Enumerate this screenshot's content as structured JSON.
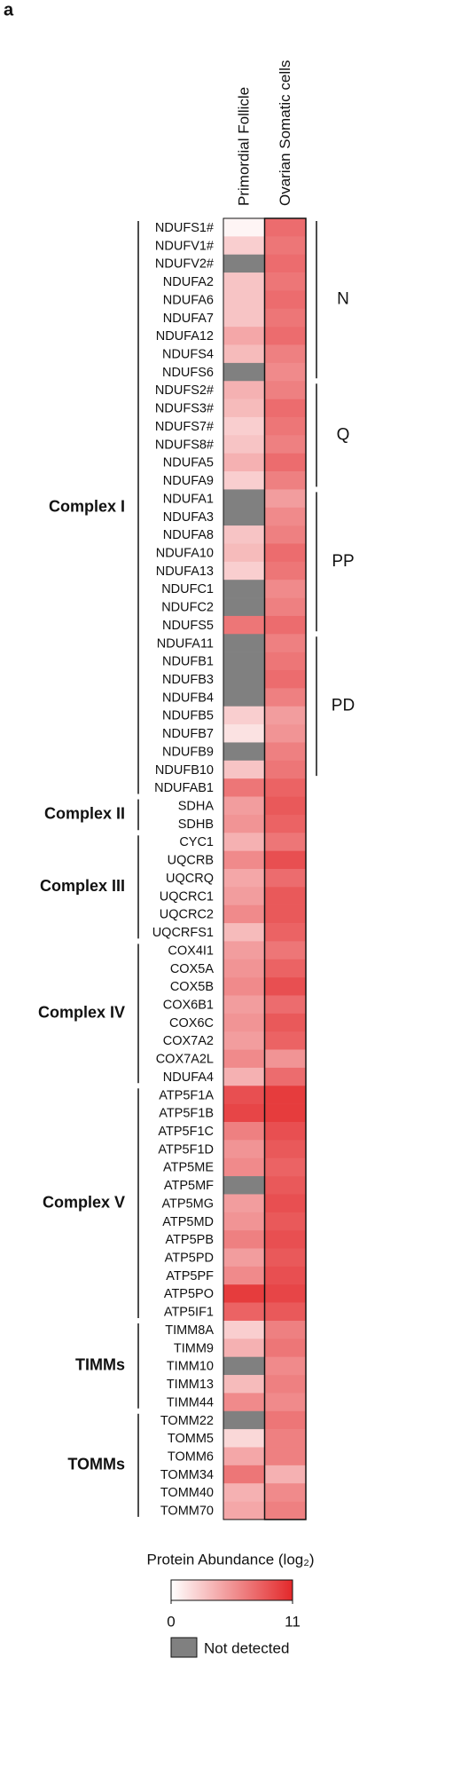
{
  "panel": "a",
  "chart_data": {
    "type": "heatmap",
    "groups": [
      {
        "label": "Complex I",
        "subgroups": [
          {
            "label": "N",
            "categories": [
              "NDUFS1#",
              "NDUFV1#",
              "NDUFV2#",
              "NDUFA2",
              "NDUFA6",
              "NDUFA7",
              "NDUFA12",
              "NDUFS4",
              "NDUFS6"
            ]
          },
          {
            "label": "Q",
            "categories": [
              "NDUFS2#",
              "NDUFS3#",
              "NDUFS7#",
              "NDUFS8#",
              "NDUFA5",
              "NDUFA9"
            ]
          },
          {
            "label": "PP",
            "categories": [
              "NDUFA1",
              "NDUFA3",
              "NDUFA8",
              "NDUFA10",
              "NDUFA13",
              "NDUFC1",
              "NDUFC2",
              "NDUFS5"
            ]
          },
          {
            "label": "PD",
            "categories": [
              "NDUFA11",
              "NDUFB1",
              "NDUFB3",
              "NDUFB4",
              "NDUFB5",
              "NDUFB7",
              "NDUFB9",
              "NDUFB10"
            ]
          },
          {
            "categories": [
              "NDUFAB1"
            ]
          }
        ]
      },
      {
        "label": "Complex II",
        "categories": [
          "SDHA",
          "SDHB"
        ]
      },
      {
        "label": "Complex III",
        "categories": [
          "CYC1",
          "UQCRB",
          "UQCRQ",
          "UQCRC1",
          "UQCRC2",
          "UQCRFS1"
        ]
      },
      {
        "label": "Complex IV",
        "categories": [
          "COX4I1",
          "COX5A",
          "COX5B",
          "COX6B1",
          "COX6C",
          "COX7A2",
          "COX7A2L",
          "NDUFA4"
        ]
      },
      {
        "label": "Complex V",
        "categories": [
          "ATP5F1A",
          "ATP5F1B",
          "ATP5F1C",
          "ATP5F1D",
          "ATP5ME",
          "ATP5MF",
          "ATP5MG",
          "ATP5MD",
          "ATP5PB",
          "ATP5PD",
          "ATP5PF",
          "ATP5PO",
          "ATP5IF1"
        ]
      },
      {
        "label": "TIMMs",
        "categories": [
          "TIMM8A",
          "TIMM9",
          "TIMM10",
          "TIMM13",
          "TIMM44"
        ]
      },
      {
        "label": "TOMMs",
        "categories": [
          "TOMM22",
          "TOMM5",
          "TOMM6",
          "TOMM34",
          "TOMM40",
          "TOMM70"
        ]
      }
    ],
    "series": [
      {
        "name": "Primordial Follicle",
        "values": [
          0.5,
          2.5,
          null,
          3,
          3,
          3,
          4.5,
          3.5,
          null,
          4,
          3.5,
          2.5,
          3,
          4,
          2.5,
          null,
          null,
          3,
          3.5,
          2.5,
          null,
          null,
          7,
          null,
          null,
          null,
          null,
          2.5,
          1.5,
          null,
          3,
          7,
          5,
          5.5,
          4,
          6,
          4.5,
          5,
          6,
          3.5,
          5,
          5.5,
          6,
          5,
          5.5,
          5,
          6,
          4,
          9,
          9.5,
          6.5,
          5.5,
          6,
          null,
          5,
          5.5,
          6.5,
          5,
          6,
          10,
          8,
          2.5,
          4,
          null,
          3.5,
          6,
          null,
          2,
          4.5,
          7,
          4,
          4.5
        ]
      },
      {
        "name": "Ovarian Somatic cells",
        "values": [
          7.5,
          7,
          7.5,
          7,
          7.5,
          7,
          7.5,
          6.5,
          6,
          6.5,
          7.5,
          7,
          6.5,
          7.5,
          6.5,
          5,
          6,
          6.5,
          7.5,
          7,
          6,
          6.5,
          7.5,
          6.5,
          7,
          7.5,
          6.5,
          5,
          5.5,
          6.5,
          7,
          8,
          8.5,
          8,
          7,
          9,
          7.5,
          8.5,
          8.5,
          8,
          7,
          8,
          9,
          7.5,
          8.5,
          8,
          5.5,
          7.5,
          10,
          10,
          9,
          8.5,
          8,
          8.5,
          9,
          8.5,
          9,
          8.5,
          9,
          9.5,
          8.5,
          6.5,
          7,
          6,
          6.5,
          6,
          7,
          6.5,
          6.5,
          4,
          6,
          6.5
        ]
      }
    ],
    "colorbar": {
      "label": "Protein Abundance (log₂)",
      "lim": [
        0,
        11
      ],
      "ticks": [
        0,
        11
      ],
      "colors": [
        "#ffffff",
        "#e3282a"
      ]
    },
    "missing": {
      "label": "Not detected",
      "color": "#808080"
    }
  }
}
